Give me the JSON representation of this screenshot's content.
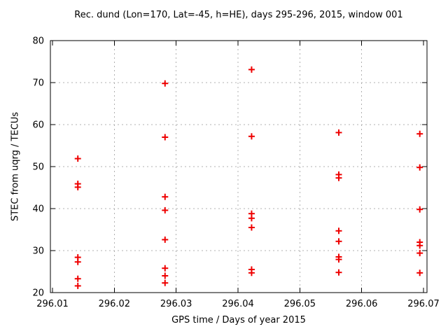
{
  "chart_data": {
    "type": "scatter",
    "title": "Rec. dund (Lon=170, Lat=-45, h=HE), days 295-296, 2015, window 001",
    "xlabel": "GPS time / Days of year 2015",
    "ylabel": "STEC from uqrg / TECUs",
    "xlim": [
      296.01,
      296.07
    ],
    "ylim": [
      20,
      80
    ],
    "xticks": [
      296.01,
      296.02,
      296.03,
      296.04,
      296.05,
      296.06,
      296.07
    ],
    "xtick_labels": [
      "296.01",
      "296.02",
      "296.03",
      "296.04",
      "296.05",
      "296.06",
      "296.07"
    ],
    "yticks": [
      20,
      30,
      40,
      50,
      60,
      70,
      80
    ],
    "ytick_labels": [
      "20",
      "30",
      "40",
      "50",
      "60",
      "70",
      "80"
    ],
    "grid": true,
    "legend_position": "none",
    "marker": "plus",
    "marker_color": "#ee0000",
    "grid_color": "#b0b0b0",
    "axis_color": "#000000",
    "series": [
      {
        "name": "STEC from uqrg",
        "points": [
          [
            296.0141,
            51.9
          ],
          [
            296.0141,
            45.9
          ],
          [
            296.0141,
            45.1
          ],
          [
            296.0141,
            28.4
          ],
          [
            296.0141,
            27.3
          ],
          [
            296.0141,
            23.3
          ],
          [
            296.0141,
            21.6
          ],
          [
            296.0282,
            69.8
          ],
          [
            296.0282,
            57.0
          ],
          [
            296.0282,
            42.8
          ],
          [
            296.0282,
            39.6
          ],
          [
            296.0282,
            32.6
          ],
          [
            296.0282,
            25.8
          ],
          [
            296.0282,
            24.0
          ],
          [
            296.0282,
            22.3
          ],
          [
            296.0422,
            73.1
          ],
          [
            296.0422,
            57.2
          ],
          [
            296.0422,
            38.8
          ],
          [
            296.0422,
            37.7
          ],
          [
            296.0422,
            35.5
          ],
          [
            296.0422,
            25.5
          ],
          [
            296.0422,
            24.7
          ],
          [
            296.0563,
            58.1
          ],
          [
            296.0563,
            48.1
          ],
          [
            296.0563,
            47.3
          ],
          [
            296.0563,
            34.7
          ],
          [
            296.0563,
            32.2
          ],
          [
            296.0563,
            28.5
          ],
          [
            296.0563,
            27.9
          ],
          [
            296.0563,
            24.8
          ],
          [
            296.0694,
            57.8
          ],
          [
            296.0694,
            49.8
          ],
          [
            296.0694,
            39.8
          ],
          [
            296.0694,
            32.0
          ],
          [
            296.0694,
            31.2
          ],
          [
            296.0694,
            29.4
          ],
          [
            296.0694,
            24.7
          ]
        ]
      }
    ]
  }
}
